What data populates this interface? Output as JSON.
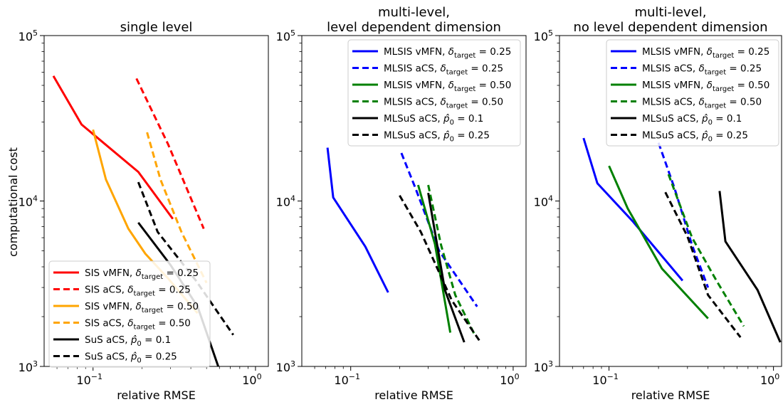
{
  "figure": {
    "ylabel": "computational cost"
  },
  "chart_data": [
    {
      "type": "line",
      "title_lines": [
        "single level"
      ],
      "xlabel": "relative RMSE",
      "xscale": "log",
      "yscale": "log",
      "xlim": [
        0.05,
        1.2
      ],
      "ylim": [
        1000,
        100000
      ],
      "xticks": [
        {
          "value": 0.1,
          "base": "10",
          "exp": "−1"
        },
        {
          "value": 1,
          "base": "10",
          "exp": "0"
        }
      ],
      "yticks": [
        {
          "value": 1000,
          "base": "10",
          "exp": "3"
        },
        {
          "value": 10000,
          "base": "10",
          "exp": "4"
        },
        {
          "value": 100000,
          "base": "10",
          "exp": "5"
        }
      ],
      "legend_position": "lower-right",
      "series": [
        {
          "label_pre": "SIS vMFN, ",
          "sym": "δ",
          "sub": "target",
          "label_post": " = 0.25",
          "color": "#ff0000",
          "dash": "solid",
          "x": [
            0.057,
            0.085,
            0.19,
            0.31
          ],
          "y": [
            57000,
            29000,
            15000,
            7800
          ]
        },
        {
          "label_pre": "SIS aCS, ",
          "sym": "δ",
          "sub": "target",
          "label_post": " = 0.25",
          "color": "#ff0000",
          "dash": "dashed",
          "x": [
            0.185,
            0.29,
            0.48
          ],
          "y": [
            55000,
            22000,
            6800
          ]
        },
        {
          "label_pre": "SIS vMFN, ",
          "sym": "δ",
          "sub": "target",
          "label_post": " = 0.50",
          "color": "#ffa500",
          "dash": "solid",
          "x": [
            0.1,
            0.12,
            0.165,
            0.21,
            0.29,
            0.44
          ],
          "y": [
            27000,
            13500,
            6800,
            4800,
            3400,
            2100
          ]
        },
        {
          "label_pre": "SIS aCS, ",
          "sym": "δ",
          "sub": "target",
          "label_post": " = 0.50",
          "color": "#ffa500",
          "dash": "dashed",
          "x": [
            0.215,
            0.26,
            0.35,
            0.5
          ],
          "y": [
            26000,
            13500,
            6500,
            3200
          ]
        },
        {
          "label_pre": "SuS aCS, ",
          "sym": "p̂",
          "sub": "0",
          "label_post": " = 0.1",
          "color": "#000000",
          "dash": "solid",
          "x": [
            0.19,
            0.3,
            0.44,
            0.59
          ],
          "y": [
            7400,
            4100,
            2300,
            1000
          ]
        },
        {
          "label_pre": "SuS aCS, ",
          "sym": "p̂",
          "sub": "0",
          "label_post": " = 0.25",
          "color": "#000000",
          "dash": "dashed",
          "x": [
            0.19,
            0.25,
            0.43,
            0.73
          ],
          "y": [
            13000,
            6500,
            3300,
            1550
          ]
        }
      ]
    },
    {
      "type": "line",
      "title_lines": [
        "multi-level,",
        "level dependent dimension"
      ],
      "xlabel": "relative RMSE",
      "xscale": "log",
      "yscale": "log",
      "xlim": [
        0.05,
        1.2
      ],
      "ylim": [
        1000,
        100000
      ],
      "xticks": [
        {
          "value": 0.1,
          "base": "10",
          "exp": "−1"
        },
        {
          "value": 1,
          "base": "10",
          "exp": "0"
        }
      ],
      "yticks": [
        {
          "value": 1000,
          "base": "10",
          "exp": "3"
        },
        {
          "value": 10000,
          "base": "10",
          "exp": "4"
        },
        {
          "value": 100000,
          "base": "10",
          "exp": "5"
        }
      ],
      "legend_position": "upper-right",
      "series": [
        {
          "label_pre": "MLSIS vMFN, ",
          "sym": "δ",
          "sub": "target",
          "label_post": " = 0.25",
          "color": "#0000ff",
          "dash": "solid",
          "x": [
            0.072,
            0.078,
            0.123,
            0.17
          ],
          "y": [
            21000,
            10500,
            5300,
            2800
          ]
        },
        {
          "label_pre": "MLSIS aCS, ",
          "sym": "δ",
          "sub": "target",
          "label_post": " = 0.25",
          "color": "#0000ff",
          "dash": "dashed",
          "x": [
            0.205,
            0.25,
            0.35,
            0.6
          ],
          "y": [
            19500,
            12000,
            5000,
            2300
          ]
        },
        {
          "label_pre": "MLSIS vMFN, ",
          "sym": "δ",
          "sub": "target",
          "label_post": " = 0.50",
          "color": "#008000",
          "dash": "solid",
          "x": [
            0.26,
            0.33,
            0.41
          ],
          "y": [
            12500,
            5500,
            1600
          ]
        },
        {
          "label_pre": "MLSIS aCS, ",
          "sym": "δ",
          "sub": "target",
          "label_post": " = 0.50",
          "color": "#008000",
          "dash": "dashed",
          "x": [
            0.3,
            0.36,
            0.44,
            0.58
          ],
          "y": [
            12500,
            5400,
            2700,
            1550
          ]
        },
        {
          "label_pre": "MLSuS aCS, ",
          "sym": "p̂",
          "sub": "0",
          "label_post": " = 0.1",
          "color": "#000000",
          "dash": "solid",
          "x": [
            0.3,
            0.38,
            0.5
          ],
          "y": [
            11200,
            2900,
            1400
          ]
        },
        {
          "label_pre": "MLSuS aCS, ",
          "sym": "p̂",
          "sub": "0",
          "label_post": " = 0.25",
          "color": "#000000",
          "dash": "dashed",
          "x": [
            0.2,
            0.27,
            0.42,
            0.63
          ],
          "y": [
            10800,
            6500,
            2500,
            1400
          ]
        }
      ]
    },
    {
      "type": "line",
      "title_lines": [
        "multi-level,",
        "no level dependent dimension"
      ],
      "xlabel": "relative RMSE",
      "xscale": "log",
      "yscale": "log",
      "xlim": [
        0.05,
        1.12
      ],
      "ylim": [
        1000,
        100000
      ],
      "xticks": [
        {
          "value": 0.1,
          "base": "10",
          "exp": "−1"
        },
        {
          "value": 1,
          "base": "10",
          "exp": "0"
        }
      ],
      "yticks": [
        {
          "value": 1000,
          "base": "10",
          "exp": "3"
        },
        {
          "value": 10000,
          "base": "10",
          "exp": "4"
        },
        {
          "value": 100000,
          "base": "10",
          "exp": "5"
        }
      ],
      "legend_position": "upper-right",
      "series": [
        {
          "label_pre": "MLSIS vMFN, ",
          "sym": "δ",
          "sub": "target",
          "label_post": " = 0.25",
          "color": "#0000ff",
          "dash": "solid",
          "x": [
            0.07,
            0.085,
            0.14,
            0.28
          ],
          "y": [
            24000,
            12800,
            7500,
            3300
          ]
        },
        {
          "label_pre": "MLSIS aCS, ",
          "sym": "δ",
          "sub": "target",
          "label_post": " = 0.25",
          "color": "#0000ff",
          "dash": "dashed",
          "x": [
            0.2,
            0.25,
            0.32,
            0.4
          ],
          "y": [
            22500,
            12000,
            5400,
            3000
          ]
        },
        {
          "label_pre": "MLSIS vMFN, ",
          "sym": "δ",
          "sub": "target",
          "label_post": " = 0.50",
          "color": "#008000",
          "dash": "solid",
          "x": [
            0.1,
            0.13,
            0.21,
            0.4
          ],
          "y": [
            16300,
            9000,
            3900,
            1950
          ]
        },
        {
          "label_pre": "MLSIS aCS, ",
          "sym": "δ",
          "sub": "target",
          "label_post": " = 0.50",
          "color": "#008000",
          "dash": "dashed",
          "x": [
            0.23,
            0.32,
            0.45,
            0.66
          ],
          "y": [
            14500,
            6000,
            3300,
            1750
          ]
        },
        {
          "label_pre": "MLSuS aCS, ",
          "sym": "p̂",
          "sub": "0",
          "label_post": " = 0.1",
          "color": "#000000",
          "dash": "solid",
          "x": [
            0.47,
            0.51,
            0.8,
            1.1
          ],
          "y": [
            11500,
            5700,
            2900,
            1400
          ]
        },
        {
          "label_pre": "MLSuS aCS, ",
          "sym": "p̂",
          "sub": "0",
          "label_post": " = 0.25",
          "color": "#000000",
          "dash": "dashed",
          "x": [
            0.22,
            0.3,
            0.4,
            0.63
          ],
          "y": [
            11300,
            6100,
            2700,
            1500
          ]
        }
      ]
    }
  ]
}
